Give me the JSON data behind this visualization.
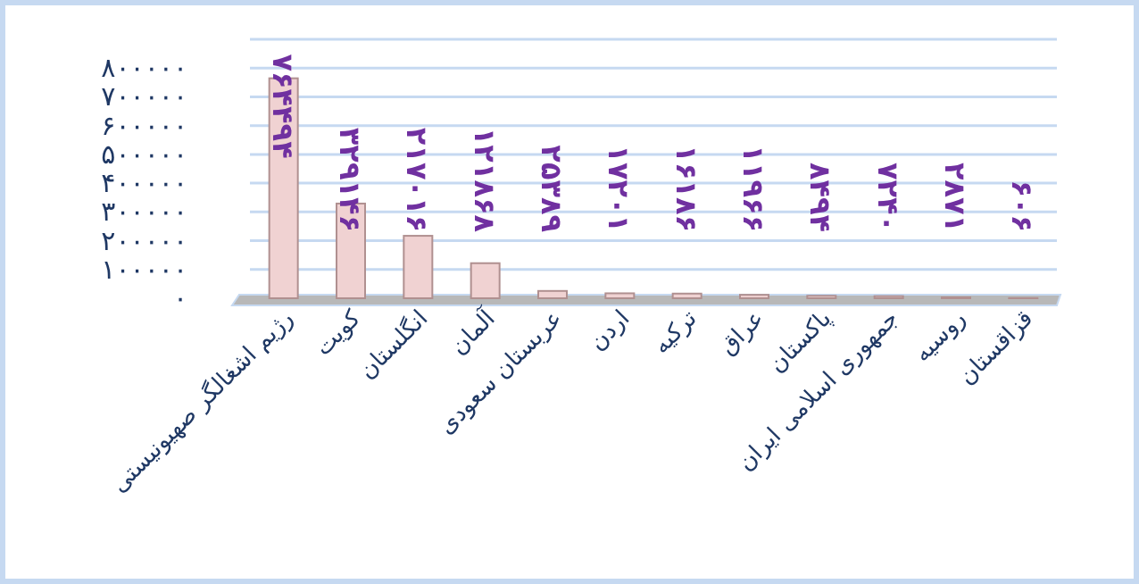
{
  "chart_data": {
    "type": "bar",
    "categories": [
      "رژیم اشغالگر صهیونیستی",
      "کویت",
      "انگلستان",
      "آلمان",
      "عربستان سعودی",
      "اردن",
      "ترکیه",
      "عراق",
      "پاکستان",
      "جمهوری اسلامی ایران",
      "روسیه",
      "قزاقستان"
    ],
    "values": [
      764494,
      329146,
      217016,
      121868,
      25389,
      17201,
      16186,
      11966,
      8494,
      7240,
      2871,
      606
    ],
    "value_labels": [
      "۷۶۴۴۹۴",
      "۳۲۹۱۴۶",
      "۲۱۷۰۱۶",
      "۱۲۱۸۶۸",
      "۲۵۳۸۹",
      "۱۷۲۰۱",
      "۱۶۱۸۶",
      "۱۱۹۶۶",
      "۸۴۹۴",
      "۷۲۴۰",
      "۲۸۷۱",
      "۶۰۶"
    ],
    "colors": [
      "#f0d2d2",
      "#f0d2d2",
      "#f0d2d2",
      "#f0d2d2",
      "#f0d2d2",
      "#f0d2d2",
      "#f0d2d2",
      "#f0d2d2",
      "#f0d2d2",
      "#f0d2d2",
      "#e3cccc",
      "#6e6262"
    ],
    "ylim": [
      0,
      900000
    ],
    "yticks": [
      {
        "value": 0,
        "label": "۰"
      },
      {
        "value": 100000,
        "label": "۱۰۰۰۰۰"
      },
      {
        "value": 200000,
        "label": "۲۰۰۰۰۰"
      },
      {
        "value": 300000,
        "label": "۳۰۰۰۰۰"
      },
      {
        "value": 400000,
        "label": "۴۰۰۰۰۰"
      },
      {
        "value": 500000,
        "label": "۵۰۰۰۰۰"
      },
      {
        "value": 600000,
        "label": "۶۰۰۰۰۰"
      },
      {
        "value": 700000,
        "label": "۷۰۰۰۰۰"
      },
      {
        "value": 800000,
        "label": "۸۰۰۰۰۰"
      },
      {
        "value": 900000,
        "label": null
      }
    ],
    "grid": "y"
  }
}
